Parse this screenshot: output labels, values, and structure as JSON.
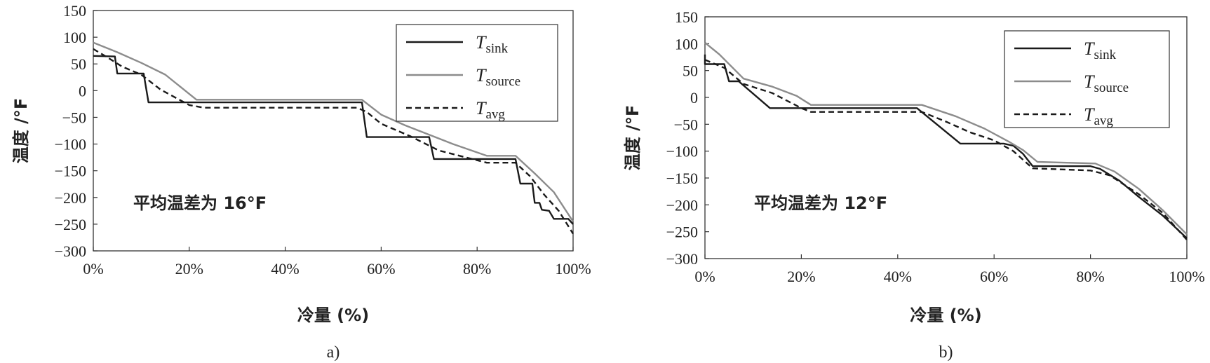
{
  "figure": {
    "panels": [
      {
        "caption": "a)",
        "annotation": "平均温差为 16°F"
      },
      {
        "caption": "b)",
        "annotation": "平均温差为 12°F"
      }
    ]
  },
  "chart_data": [
    {
      "type": "line",
      "xlabel": "冷量 (%)",
      "ylabel": "温度 /°F",
      "xlim": [
        0,
        100
      ],
      "ylim": [
        -300,
        150
      ],
      "xticks": [
        "0%",
        "20%",
        "40%",
        "60%",
        "80%",
        "100%"
      ],
      "yticks": [
        150,
        100,
        50,
        0,
        -50,
        -100,
        -150,
        -200,
        -250,
        -300
      ],
      "grid": false,
      "legend_position": "top-right",
      "annotation": "平均温差为 16°F",
      "series": [
        {
          "name": "Tsink",
          "name_main": "T",
          "name_sub": "sink",
          "color": "#1a1a1a",
          "dash": "",
          "x": [
            0,
            0,
            4.5,
            5,
            10.5,
            11.5,
            56,
            57,
            70,
            71,
            88,
            89,
            91.5,
            92,
            93,
            93.5,
            95,
            96,
            99,
            100
          ],
          "y": [
            65,
            65,
            64,
            32,
            32,
            -22,
            -22,
            -87,
            -87,
            -128,
            -128,
            -174,
            -174,
            -210,
            -210,
            -223,
            -225,
            -240,
            -240,
            -250
          ]
        },
        {
          "name": "Tsource",
          "name_main": "T",
          "name_sub": "source",
          "color": "#8c8c8c",
          "dash": "",
          "x": [
            0,
            5,
            10,
            15,
            21.5,
            56,
            60,
            65,
            75,
            82,
            88,
            92,
            96,
            100
          ],
          "y": [
            90,
            72,
            52,
            30,
            -17,
            -17,
            -45,
            -65,
            -100,
            -122,
            -122,
            -155,
            -190,
            -245
          ]
        },
        {
          "name": "Tavg",
          "name_main": "T",
          "name_sub": "avg",
          "color": "#1a1a1a",
          "dash": "8,5",
          "x": [
            0,
            3,
            6,
            10,
            14,
            20,
            23,
            55,
            57,
            60,
            66,
            72,
            82,
            88,
            91,
            94,
            97,
            100
          ],
          "y": [
            78,
            62,
            45,
            30,
            2,
            -27,
            -32,
            -32,
            -40,
            -62,
            -85,
            -112,
            -135,
            -135,
            -160,
            -195,
            -225,
            -268
          ]
        }
      ]
    },
    {
      "type": "line",
      "xlabel": "冷量 (%)",
      "ylabel": "温度 /°F",
      "xlim": [
        0,
        100
      ],
      "ylim": [
        -300,
        150
      ],
      "xticks": [
        "0%",
        "20%",
        "40%",
        "60%",
        "80%",
        "100%"
      ],
      "yticks": [
        150,
        100,
        50,
        0,
        -50,
        -100,
        -150,
        -200,
        -250,
        -300
      ],
      "grid": false,
      "legend_position": "top-right",
      "annotation": "平均温差为 12°F",
      "series": [
        {
          "name": "Tsink",
          "name_main": "T",
          "name_sub": "sink",
          "color": "#1a1a1a",
          "dash": "",
          "x": [
            0,
            0,
            4,
            5,
            7,
            13.5,
            44,
            53,
            62,
            64,
            66,
            68,
            80,
            82,
            86,
            90,
            95,
            100
          ],
          "y": [
            80,
            62,
            62,
            30,
            30,
            -20,
            -20,
            -86,
            -86,
            -90,
            -105,
            -128,
            -128,
            -133,
            -155,
            -185,
            -220,
            -262
          ]
        },
        {
          "name": "Tsource",
          "name_main": "T",
          "name_sub": "source",
          "color": "#8c8c8c",
          "dash": "",
          "x": [
            0,
            3,
            8,
            14,
            19,
            22,
            45,
            52,
            58,
            63,
            66,
            69,
            81,
            85,
            90,
            95,
            100
          ],
          "y": [
            102,
            80,
            35,
            20,
            3,
            -14,
            -14,
            -35,
            -58,
            -82,
            -98,
            -120,
            -123,
            -138,
            -170,
            -210,
            -255
          ]
        },
        {
          "name": "Tavg",
          "name_main": "T",
          "name_sub": "avg",
          "color": "#1a1a1a",
          "dash": "8,5",
          "x": [
            0,
            4,
            8,
            14,
            20,
            22,
            45,
            50,
            55,
            60,
            64,
            68,
            80,
            84,
            90,
            95,
            100
          ],
          "y": [
            70,
            55,
            25,
            8,
            -20,
            -27,
            -27,
            -45,
            -65,
            -80,
            -100,
            -132,
            -136,
            -145,
            -180,
            -215,
            -265
          ]
        }
      ]
    }
  ]
}
